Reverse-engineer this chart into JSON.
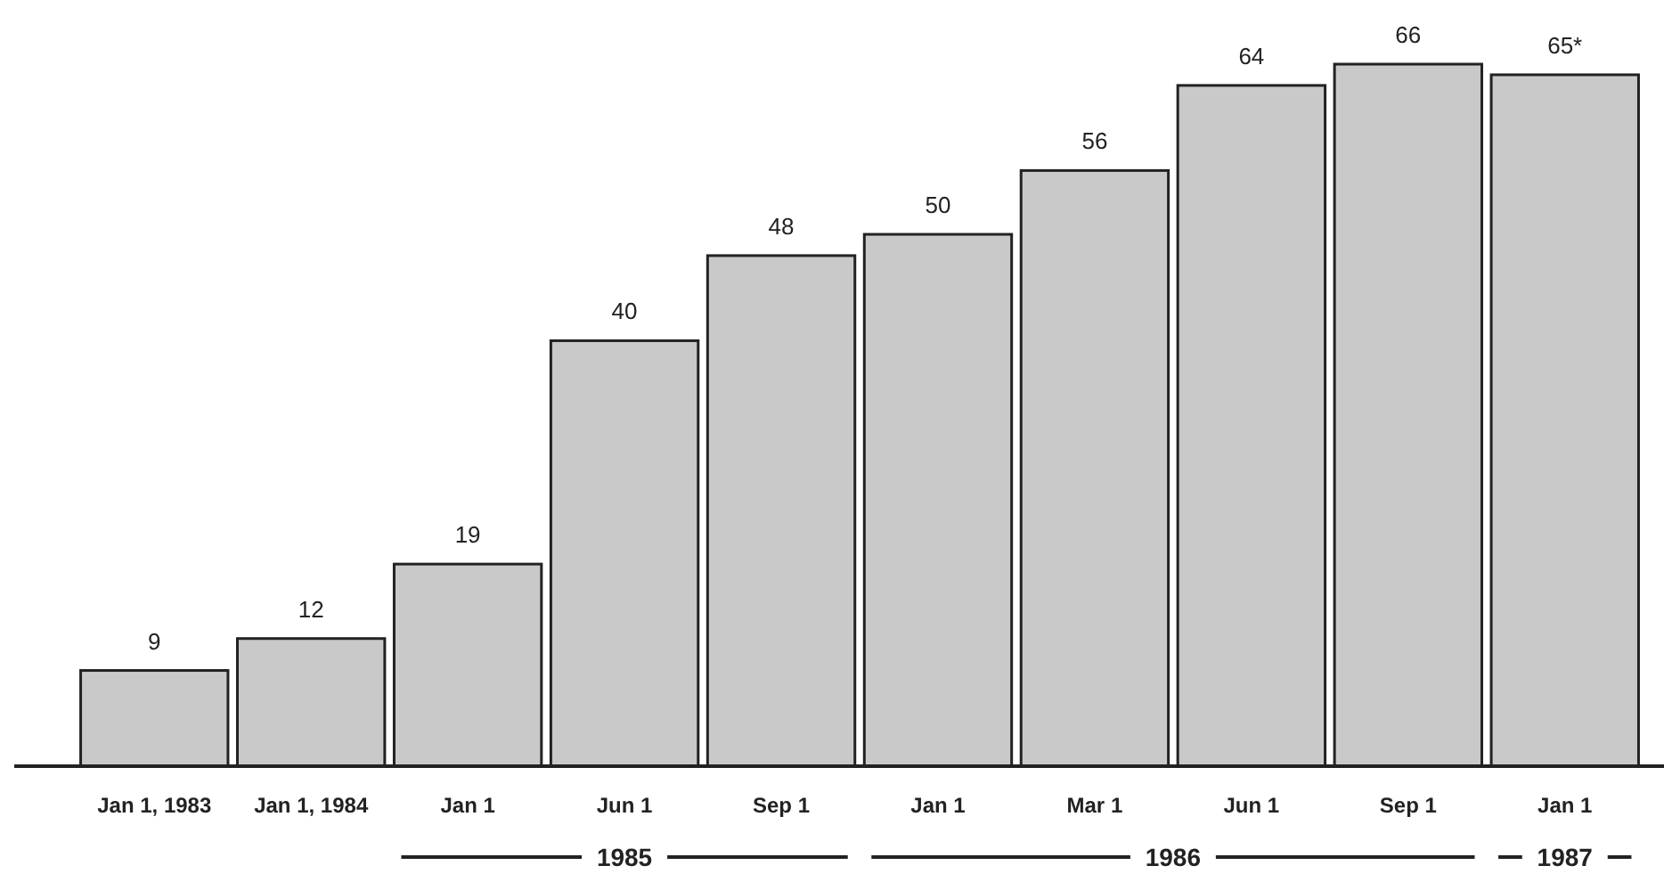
{
  "chart_data": {
    "type": "bar",
    "categories": [
      "Jan 1, 1983",
      "Jan 1, 1984",
      "Jan 1",
      "Jun 1",
      "Sep 1",
      "Jan 1",
      "Mar 1",
      "Jun 1",
      "Sep 1",
      "Jan 1"
    ],
    "values": [
      9,
      12,
      19,
      40,
      48,
      50,
      56,
      64,
      66,
      65
    ],
    "value_labels": [
      "9",
      "12",
      "19",
      "40",
      "48",
      "50",
      "56",
      "64",
      "66",
      "65*"
    ],
    "color": "#c9c9c9",
    "annotations": [
      "1985",
      "1986",
      "1987"
    ]
  }
}
